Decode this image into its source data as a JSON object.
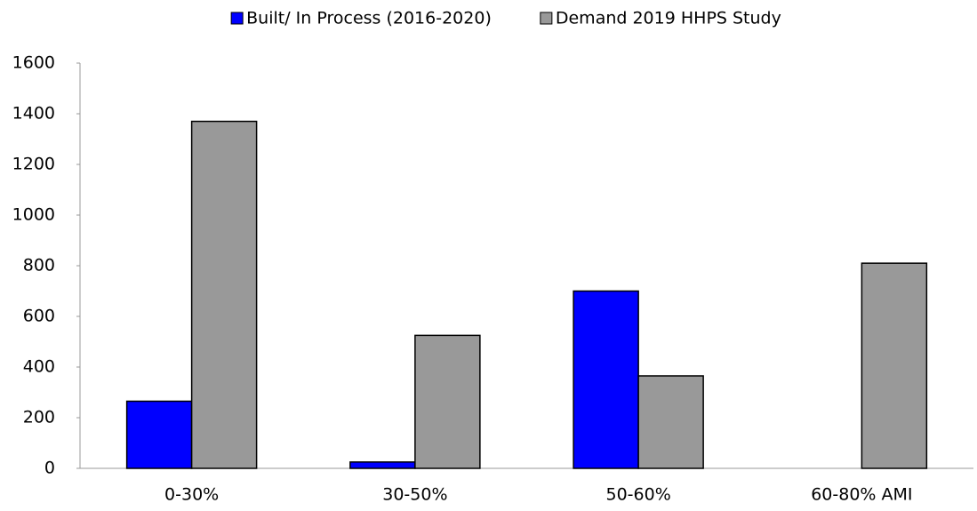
{
  "chart_data": {
    "type": "bar",
    "categories": [
      "0-30%",
      "30-50%",
      "50-60%",
      "60-80% AMI"
    ],
    "series": [
      {
        "name": "Built/ In Process (2016-2020)",
        "color": "#0000ff",
        "values": [
          265,
          25,
          700,
          0
        ]
      },
      {
        "name": "Demand 2019 HHPS Study",
        "color": "#999999",
        "values": [
          1370,
          525,
          365,
          810
        ]
      }
    ],
    "ylim": [
      0,
      1600
    ],
    "yticks": [
      0,
      200,
      400,
      600,
      800,
      1000,
      1200,
      1400,
      1600
    ],
    "grid": false,
    "legend": "top"
  }
}
